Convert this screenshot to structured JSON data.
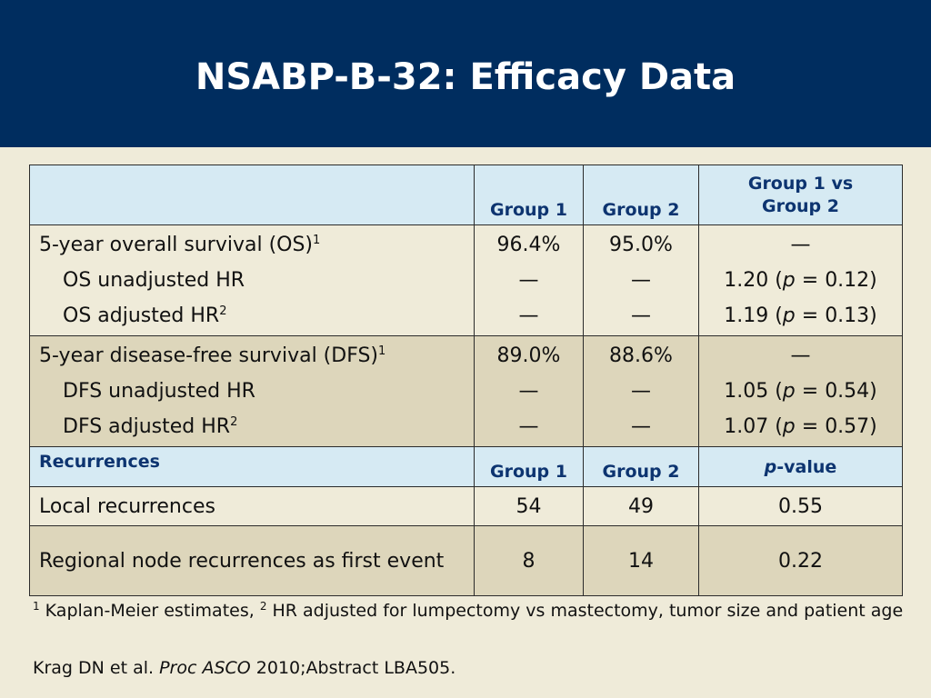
{
  "slide": {
    "title": "NSABP-B-32: Efficacy Data"
  },
  "table": {
    "header": {
      "label": "",
      "group1": "Group 1",
      "group2": "Group 2",
      "comparison_line1": "Group 1 vs",
      "comparison_line2": "Group 2"
    },
    "os": {
      "main_label": "5-year overall survival (OS)",
      "main_sup": "1",
      "main_group1": "96.4%",
      "main_group2": "95.0%",
      "main_comparison": "—",
      "unadj_label": "OS unadjusted HR",
      "unadj_group1": "—",
      "unadj_group2": "—",
      "unadj_hr": "1.20",
      "unadj_p": "0.12",
      "adj_label": "OS adjusted HR",
      "adj_sup": "2",
      "adj_group1": "—",
      "adj_group2": "—",
      "adj_hr": "1.19",
      "adj_p": "0.13"
    },
    "dfs": {
      "main_label": "5-year disease-free survival (DFS)",
      "main_sup": "1",
      "main_group1": "89.0%",
      "main_group2": "88.6%",
      "main_comparison": "—",
      "unadj_label": "DFS unadjusted HR",
      "unadj_group1": "—",
      "unadj_group2": "—",
      "unadj_hr": "1.05",
      "unadj_p": "0.54",
      "adj_label": "DFS adjusted HR",
      "adj_sup": "2",
      "adj_group1": "—",
      "adj_group2": "—",
      "adj_hr": "1.07",
      "adj_p": "0.57"
    },
    "p_symbol": "p",
    "recurrence_header": {
      "label": "Recurrences",
      "group1": "Group 1",
      "group2": "Group 2",
      "pvalue_p": "p",
      "pvalue_suffix": "-value"
    },
    "local": {
      "label": "Local recurrences",
      "group1": "54",
      "group2": "49",
      "pvalue": "0.55"
    },
    "regional": {
      "label": "Regional node recurrences as first event",
      "group1": "8",
      "group2": "14",
      "pvalue": "0.22"
    }
  },
  "footnote": {
    "sup1": "1",
    "text1": " Kaplan-Meier estimates, ",
    "sup2": "2",
    "text2": " HR adjusted for lumpectomy vs mastectomy, tumor size and patient age"
  },
  "citation": {
    "authors": "Krag DN et al. ",
    "journal": "Proc ASCO",
    "rest": " 2010;Abstract LBA505."
  }
}
